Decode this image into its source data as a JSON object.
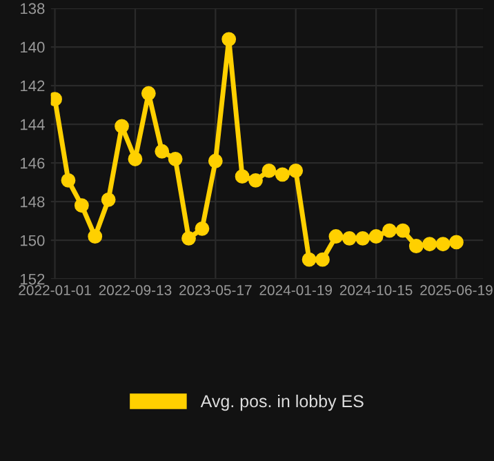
{
  "chart_data": {
    "type": "line",
    "categories": [
      "2022-01-01",
      null,
      null,
      null,
      null,
      null,
      "2022-09-13",
      null,
      null,
      null,
      null,
      null,
      "2023-05-17",
      null,
      null,
      null,
      null,
      null,
      "2024-01-19",
      null,
      null,
      null,
      null,
      null,
      "2024-10-15",
      null,
      null,
      null,
      null,
      null,
      "2025-06-19"
    ],
    "series": [
      {
        "name": "Avg. pos. in lobby ES",
        "color": "#ffd000",
        "values": [
          142.7,
          146.9,
          148.2,
          149.8,
          147.9,
          144.1,
          145.8,
          142.4,
          145.4,
          145.8,
          149.9,
          149.4,
          145.9,
          139.6,
          146.7,
          146.9,
          146.4,
          146.6,
          146.4,
          151.0,
          151.0,
          149.8,
          149.9,
          149.9,
          149.8,
          149.5,
          149.5,
          150.3,
          150.2,
          150.2,
          150.1
        ]
      }
    ],
    "ylim": [
      152,
      138
    ],
    "yticks": [
      138,
      140,
      142,
      144,
      146,
      148,
      150,
      152
    ],
    "grid": true,
    "legend": "bottom",
    "marker": "circle",
    "line_style": "solid"
  }
}
